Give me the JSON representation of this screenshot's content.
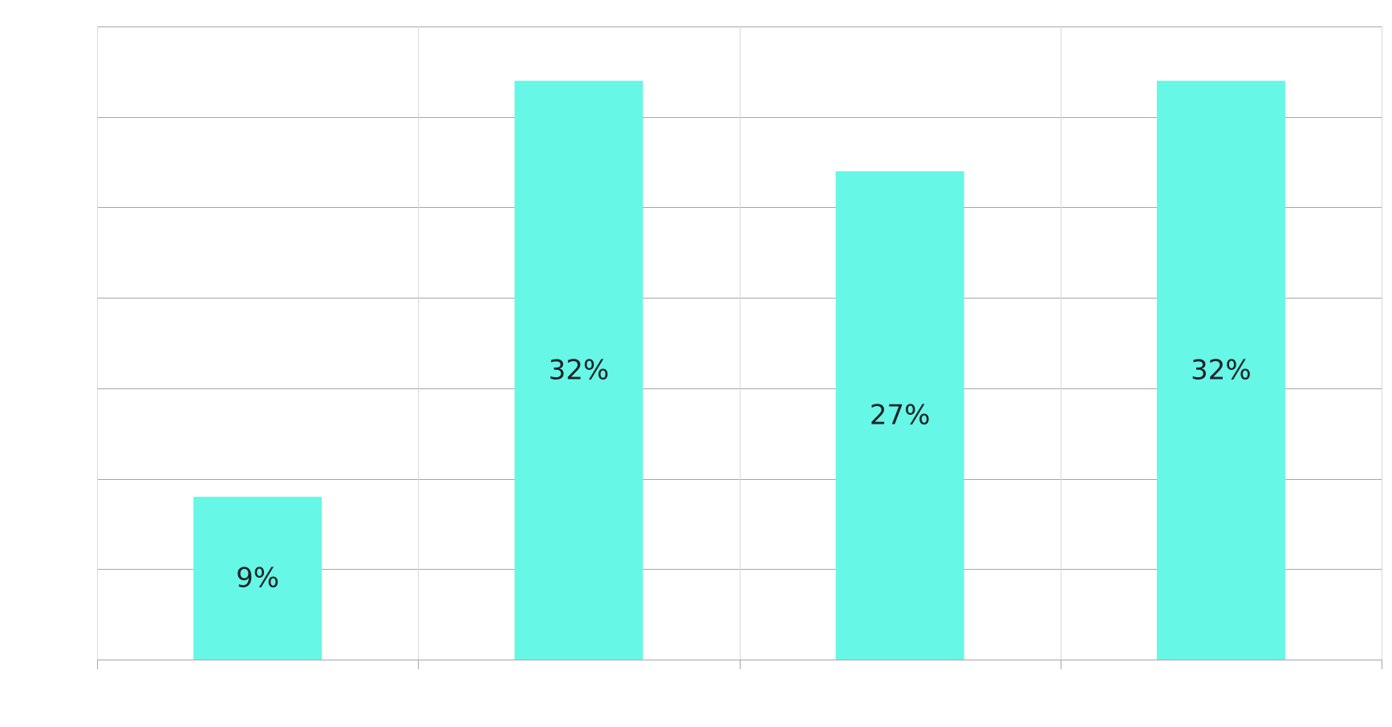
{
  "chart_data": {
    "type": "bar",
    "categories": [
      "",
      "",
      "",
      ""
    ],
    "values": [
      9,
      32,
      27,
      32
    ],
    "data_labels": [
      "9%",
      "32%",
      "27%",
      "32%"
    ],
    "ylim": [
      0,
      35
    ],
    "y_gridline_step": 5,
    "grid": true,
    "legend": "none",
    "colors": {
      "bar": "#66f7e6",
      "label": "#1f2328",
      "grid_major": "#a6a6a6",
      "grid_minor": "#d9d9d9"
    }
  }
}
